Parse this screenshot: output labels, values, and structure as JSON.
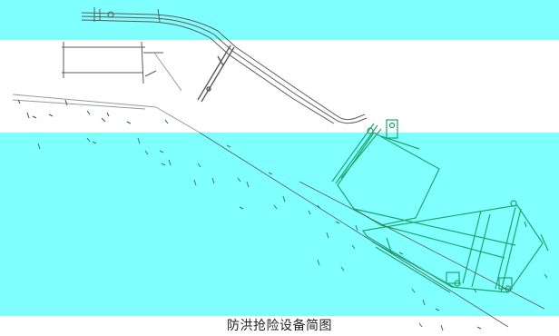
{
  "caption": "防洪抢险设备简图",
  "colors": {
    "background": "#ffffff",
    "cyan_band": "#80ffff",
    "line_dark": "#5a5a5a",
    "line_light": "#9a9a9a",
    "green": "#1ea56f",
    "hatch": "#2a7f6a"
  }
}
